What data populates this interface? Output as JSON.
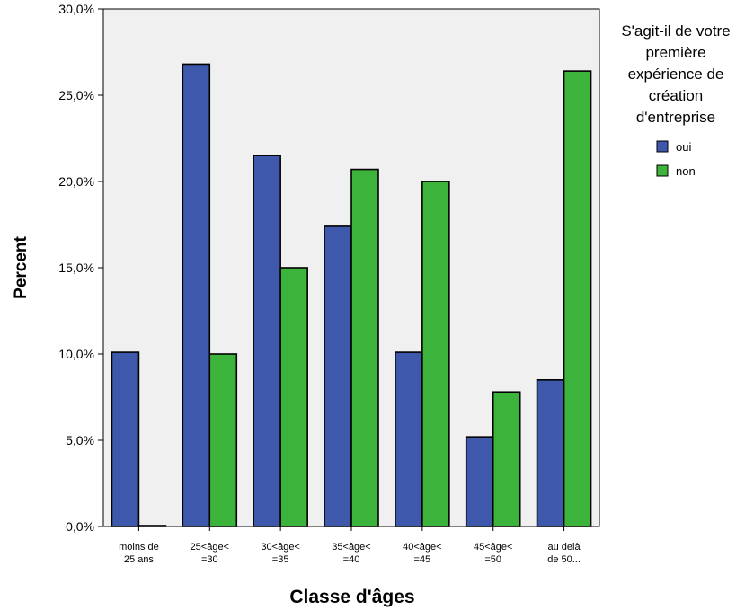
{
  "chart_data": {
    "type": "bar",
    "xlabel": "Classe d'âges",
    "ylabel": "Percent",
    "ylim": [
      0,
      30
    ],
    "yticks": [
      "0,0%",
      "5,0%",
      "10,0%",
      "15,0%",
      "20,0%",
      "25,0%",
      "30,0%"
    ],
    "ytick_values": [
      0,
      5,
      10,
      15,
      20,
      25,
      30
    ],
    "grid": false,
    "legend_position": "right",
    "legend_title_lines": [
      "S'agit-il de votre",
      "première",
      "expérience de",
      "création",
      "d'entreprise"
    ],
    "categories": [
      [
        "moins de",
        "25 ans"
      ],
      [
        "25<âge<",
        "=30"
      ],
      [
        "30<âge<",
        "=35"
      ],
      [
        "35<âge<",
        "=40"
      ],
      [
        "40<âge<",
        "=45"
      ],
      [
        "45<âge<",
        "=50"
      ],
      [
        "au delà",
        "de 50..."
      ]
    ],
    "series": [
      {
        "name": "oui",
        "color": "#3E58AC",
        "values": [
          10.1,
          26.8,
          21.5,
          17.4,
          10.1,
          5.2,
          8.5
        ]
      },
      {
        "name": "non",
        "color": "#3CB43C",
        "values": [
          0.0,
          10.0,
          15.0,
          20.7,
          20.0,
          7.8,
          26.4
        ]
      }
    ],
    "plot_background": "#F0F0F0"
  }
}
